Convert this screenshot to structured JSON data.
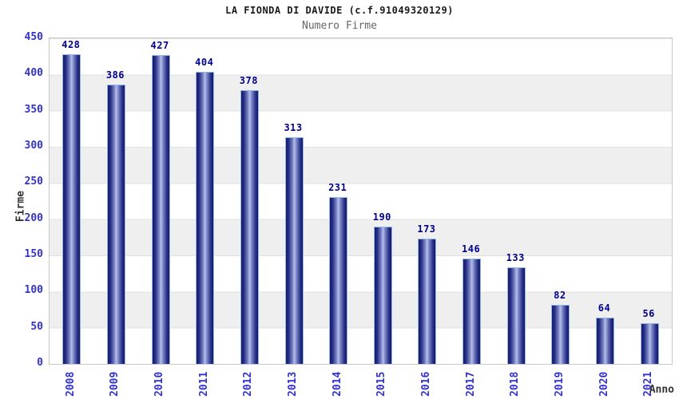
{
  "header": {
    "title": "LA FIONDA DI DAVIDE (c.f.91049320129)",
    "subtitle": "Numero Firme"
  },
  "chart_data": {
    "type": "bar",
    "title": "LA FIONDA DI DAVIDE (c.f.91049320129)",
    "subtitle": "Numero Firme",
    "xlabel": "Anno",
    "ylabel": "Firme",
    "categories": [
      "2008",
      "2009",
      "2010",
      "2011",
      "2012",
      "2013",
      "2014",
      "2015",
      "2016",
      "2017",
      "2018",
      "2019",
      "2020",
      "2021"
    ],
    "values": [
      428,
      386,
      427,
      404,
      378,
      313,
      231,
      190,
      173,
      146,
      133,
      82,
      64,
      56
    ],
    "ylim": [
      0,
      450
    ],
    "ytick_step": 50,
    "yticks": [
      0,
      50,
      100,
      150,
      200,
      250,
      300,
      350,
      400,
      450
    ],
    "grid": "horizontal-bands",
    "legend_position": "none",
    "bar_labels_shown": true
  },
  "colors": {
    "background": "#ffffff",
    "band_gray": "#efefef",
    "gridline": "#e0e0e0",
    "plot_border": "#c8c8c8",
    "tick_label_blue": "#3232cd",
    "value_label_navy": "#00008c",
    "title_text": "#1a1a1a",
    "subtitle_text": "#666666",
    "axis_title_text": "#333333",
    "bar_dark": "#171b66",
    "bar_light": "#b7c0ea",
    "bar_outline": "#8fb8e8"
  }
}
